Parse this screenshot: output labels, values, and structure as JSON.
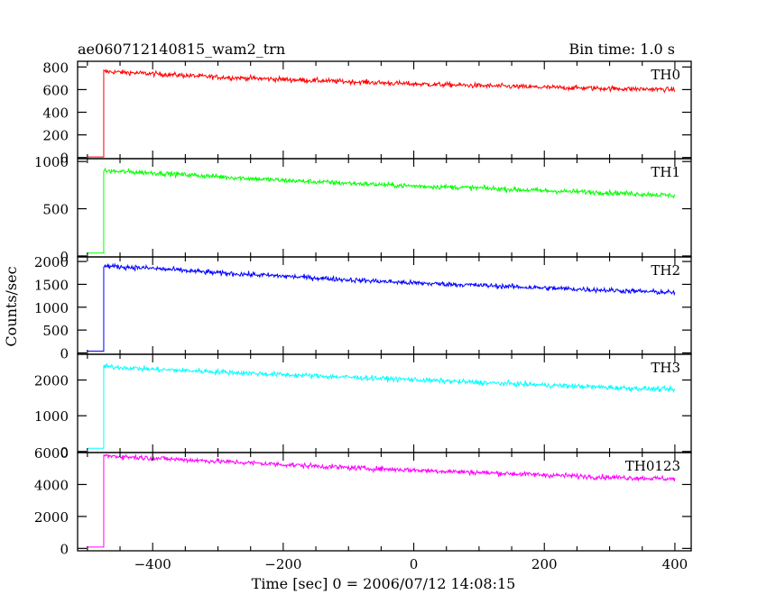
{
  "header": {
    "title": "ae060712140815_wam2_trn",
    "bin_time": "Bin time: 1.0 s"
  },
  "chart_data": {
    "type": "line",
    "title": "ae060712140815_wam2_trn",
    "subtitle": "Bin time: 1.0 s",
    "xlabel": "Time [sec] 0 = 2006/07/12 14:08:15",
    "ylabel": "Counts/sec",
    "xlim": [
      -515,
      425
    ],
    "x_ticks": [
      -400,
      -200,
      0,
      200,
      400
    ],
    "x_tick_labels": [
      "−400",
      "−200",
      "0",
      "200",
      "400"
    ],
    "trigger_time": -475,
    "x_end": 400,
    "grid": false,
    "panels": [
      {
        "name": "TH0",
        "color": "#ff0000",
        "ylim": [
          -10,
          850
        ],
        "yticks": [
          0,
          200,
          400,
          600,
          800
        ],
        "pre_level": 5,
        "curve": [
          [
            -475,
            760
          ],
          [
            -400,
            740
          ],
          [
            -300,
            710
          ],
          [
            -200,
            690
          ],
          [
            -100,
            670
          ],
          [
            0,
            650
          ],
          [
            100,
            635
          ],
          [
            200,
            620
          ],
          [
            300,
            610
          ],
          [
            400,
            600
          ]
        ]
      },
      {
        "name": "TH1",
        "color": "#00ff00",
        "ylim": [
          -10,
          1030
        ],
        "yticks": [
          0,
          500,
          1000
        ],
        "pre_level": 30,
        "curve": [
          [
            -475,
            900
          ],
          [
            -400,
            880
          ],
          [
            -300,
            840
          ],
          [
            -200,
            800
          ],
          [
            -100,
            770
          ],
          [
            0,
            740
          ],
          [
            100,
            720
          ],
          [
            200,
            690
          ],
          [
            300,
            670
          ],
          [
            400,
            640
          ]
        ]
      },
      {
        "name": "TH2",
        "color": "#0000ff",
        "ylim": [
          -30,
          2100
        ],
        "yticks": [
          0,
          500,
          1000,
          1500,
          2000
        ],
        "pre_level": 40,
        "curve": [
          [
            -475,
            1900
          ],
          [
            -400,
            1850
          ],
          [
            -300,
            1750
          ],
          [
            -200,
            1680
          ],
          [
            -100,
            1600
          ],
          [
            0,
            1530
          ],
          [
            100,
            1480
          ],
          [
            200,
            1420
          ],
          [
            300,
            1370
          ],
          [
            400,
            1320
          ]
        ]
      },
      {
        "name": "TH3",
        "color": "#00ffff",
        "ylim": [
          -30,
          2720
        ],
        "yticks": [
          0,
          1000,
          2000
        ],
        "pre_level": 90,
        "curve": [
          [
            -475,
            2380
          ],
          [
            -400,
            2300
          ],
          [
            -300,
            2230
          ],
          [
            -200,
            2150
          ],
          [
            -100,
            2080
          ],
          [
            0,
            2010
          ],
          [
            100,
            1930
          ],
          [
            200,
            1860
          ],
          [
            300,
            1790
          ],
          [
            400,
            1730
          ]
        ]
      },
      {
        "name": "TH0123",
        "color": "#ff00ff",
        "ylim": [
          -150,
          6000
        ],
        "yticks": [
          0,
          2000,
          4000,
          6000
        ],
        "pre_level": 80,
        "curve": [
          [
            -475,
            5800
          ],
          [
            -400,
            5650
          ],
          [
            -300,
            5450
          ],
          [
            -200,
            5250
          ],
          [
            -100,
            5050
          ],
          [
            0,
            4900
          ],
          [
            100,
            4750
          ],
          [
            200,
            4600
          ],
          [
            300,
            4450
          ],
          [
            400,
            4350
          ]
        ]
      }
    ]
  }
}
